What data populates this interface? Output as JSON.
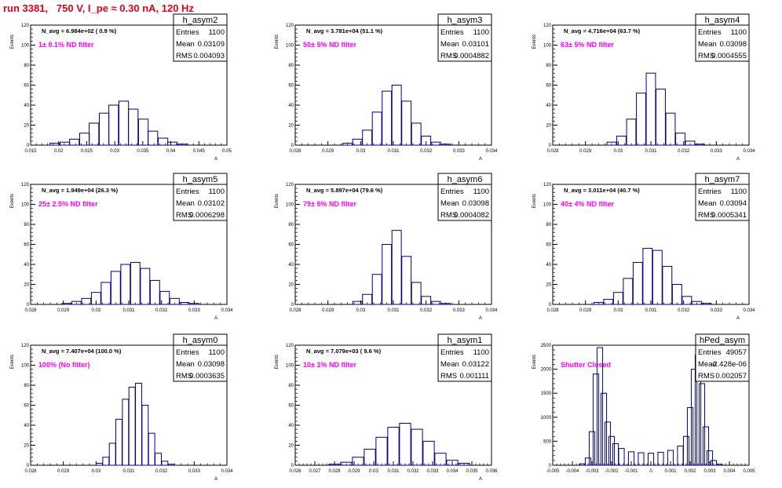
{
  "page_title": "run 3381,   750 V, I_pe ≈ 0.30 nA, 120 Hz",
  "colors": {
    "hist": "#000080",
    "title": "#e2001a",
    "annotation": "#ff00ff",
    "frame": "#000000"
  },
  "chart_data": [
    {
      "type": "bar",
      "hist_name": "h_asym2",
      "ylabel": "Events",
      "xlabel": "A",
      "navg": "N_avg = 6.984e+02 ( 0.9 %)",
      "filter": "1± 0.1% ND filter",
      "stats": {
        "entries": "1100",
        "mean": "0.03109",
        "rms": "0.004093"
      },
      "xlim": [
        0.015,
        0.05
      ],
      "ylim": [
        0,
        120
      ],
      "xticks": [
        0.015,
        0.02,
        0.025,
        0.03,
        0.035,
        0.04,
        0.045,
        0.05
      ],
      "xtick_labels": [
        "0.015",
        "0.02",
        "0.025",
        "0.03",
        "0.035",
        "0.04",
        "0.045",
        "0.05"
      ],
      "yticks": [
        0,
        20,
        40,
        60,
        80,
        100,
        120
      ],
      "ytick_labels": [
        "0",
        "20",
        "40",
        "60",
        "80",
        "100",
        "120"
      ],
      "x": [
        0.0193,
        0.0211,
        0.0228,
        0.0246,
        0.0263,
        0.0281,
        0.0298,
        0.0316,
        0.0333,
        0.0351,
        0.0368,
        0.0386,
        0.0403,
        0.0421
      ],
      "values": [
        2,
        3,
        6,
        12,
        22,
        32,
        40,
        44,
        36,
        26,
        14,
        7,
        3,
        1
      ]
    },
    {
      "type": "bar",
      "hist_name": "h_asym3",
      "ylabel": "Events",
      "xlabel": "A",
      "navg": "N_avg = 3.781e+04 (51.1 %)",
      "filter": "50± 5% ND filter",
      "stats": {
        "entries": "1100",
        "mean": "0.03101",
        "rms": "0.0004882"
      },
      "xlim": [
        0.028,
        0.034
      ],
      "ylim": [
        0,
        120
      ],
      "xticks": [
        0.028,
        0.029,
        0.03,
        0.031,
        0.032,
        0.033,
        0.034
      ],
      "xtick_labels": [
        "0.028",
        "0.029",
        "0.03",
        "0.031",
        "0.032",
        "0.033",
        "0.034"
      ],
      "yticks": [
        0,
        20,
        40,
        60,
        80,
        100,
        120
      ],
      "ytick_labels": [
        "0",
        "20",
        "40",
        "60",
        "80",
        "100",
        "120"
      ],
      "x": [
        0.0296,
        0.0299,
        0.0302,
        0.0305,
        0.0308,
        0.0311,
        0.0314,
        0.0317,
        0.032,
        0.0323,
        0.0326
      ],
      "values": [
        2,
        6,
        15,
        33,
        54,
        60,
        44,
        22,
        9,
        3,
        1
      ]
    },
    {
      "type": "bar",
      "hist_name": "h_asym4",
      "ylabel": "Events",
      "xlabel": "A",
      "navg": "N_avg = 4.716e+04 (63.7 %)",
      "filter": "63± 5% ND filter",
      "stats": {
        "entries": "1100",
        "mean": "0.03098",
        "rms": "0.0004555"
      },
      "xlim": [
        0.028,
        0.034
      ],
      "ylim": [
        0,
        120
      ],
      "xticks": [
        0.028,
        0.029,
        0.03,
        0.031,
        0.032,
        0.033,
        0.034
      ],
      "xtick_labels": [
        "0.028",
        "0.029",
        "0.03",
        "0.031",
        "0.032",
        "0.033",
        "0.034"
      ],
      "yticks": [
        0,
        20,
        40,
        60,
        80,
        100,
        120
      ],
      "ytick_labels": [
        "0",
        "20",
        "40",
        "60",
        "80",
        "100",
        "120"
      ],
      "x": [
        0.0298,
        0.0301,
        0.0304,
        0.0307,
        0.031,
        0.0313,
        0.0316,
        0.0319,
        0.0322,
        0.0325
      ],
      "values": [
        3,
        9,
        26,
        52,
        72,
        56,
        32,
        12,
        4,
        1
      ]
    },
    {
      "type": "bar",
      "hist_name": "h_asym5",
      "ylabel": "Events",
      "xlabel": "A",
      "navg": "N_avg = 1.949e+04 (26.3 %)",
      "filter": "25± 2.5% ND filter",
      "stats": {
        "entries": "1100",
        "mean": "0.03102",
        "rms": "0.0006298"
      },
      "xlim": [
        0.028,
        0.034
      ],
      "ylim": [
        0,
        120
      ],
      "xticks": [
        0.028,
        0.029,
        0.03,
        0.031,
        0.032,
        0.033,
        0.034
      ],
      "xtick_labels": [
        "0.028",
        "0.029",
        "0.03",
        "0.031",
        "0.032",
        "0.033",
        "0.034"
      ],
      "yticks": [
        0,
        20,
        40,
        60,
        80,
        100,
        120
      ],
      "ytick_labels": [
        "0",
        "20",
        "40",
        "60",
        "80",
        "100",
        "120"
      ],
      "x": [
        0.0291,
        0.0294,
        0.0297,
        0.03,
        0.0303,
        0.0306,
        0.0309,
        0.0312,
        0.0315,
        0.0318,
        0.0321,
        0.0324,
        0.0327,
        0.033
      ],
      "values": [
        1,
        3,
        6,
        12,
        22,
        33,
        40,
        42,
        36,
        24,
        13,
        6,
        2,
        1
      ]
    },
    {
      "type": "bar",
      "hist_name": "h_asym6",
      "ylabel": "Events",
      "xlabel": "A",
      "navg": "N_avg = 5.897e+04 (79.6 %)",
      "filter": "79± 5% ND filter",
      "stats": {
        "entries": "1100",
        "mean": "0.03098",
        "rms": "0.0004082"
      },
      "xlim": [
        0.028,
        0.034
      ],
      "ylim": [
        0,
        120
      ],
      "xticks": [
        0.028,
        0.029,
        0.03,
        0.031,
        0.032,
        0.033,
        0.034
      ],
      "xtick_labels": [
        "0.028",
        "0.029",
        "0.03",
        "0.031",
        "0.032",
        "0.033",
        "0.034"
      ],
      "yticks": [
        0,
        20,
        40,
        60,
        80,
        100,
        120
      ],
      "ytick_labels": [
        "0",
        "20",
        "40",
        "60",
        "80",
        "100",
        "120"
      ],
      "x": [
        0.0299,
        0.0302,
        0.0305,
        0.0308,
        0.0311,
        0.0314,
        0.0317,
        0.032,
        0.0323,
        0.0326
      ],
      "values": [
        3,
        10,
        30,
        60,
        74,
        48,
        22,
        8,
        3,
        1
      ]
    },
    {
      "type": "bar",
      "hist_name": "h_asym7",
      "ylabel": "Events",
      "xlabel": "A",
      "navg": "N_avg = 3.011e+04 (40.7 %)",
      "filter": "40± 4% ND filter",
      "stats": {
        "entries": "1100",
        "mean": "0.03094",
        "rms": "0.0005341"
      },
      "xlim": [
        0.028,
        0.034
      ],
      "ylim": [
        0,
        120
      ],
      "xticks": [
        0.028,
        0.029,
        0.03,
        0.031,
        0.032,
        0.033,
        0.034
      ],
      "xtick_labels": [
        "0.028",
        "0.029",
        "0.03",
        "0.031",
        "0.032",
        "0.033",
        "0.034"
      ],
      "yticks": [
        0,
        20,
        40,
        60,
        80,
        100,
        120
      ],
      "ytick_labels": [
        "0",
        "20",
        "40",
        "60",
        "80",
        "100",
        "120"
      ],
      "x": [
        0.0294,
        0.0297,
        0.03,
        0.0303,
        0.0306,
        0.0309,
        0.0312,
        0.0315,
        0.0318,
        0.0321,
        0.0324,
        0.0327
      ],
      "values": [
        2,
        5,
        12,
        26,
        42,
        56,
        54,
        38,
        20,
        8,
        3,
        1
      ]
    },
    {
      "type": "bar",
      "hist_name": "h_asym0",
      "ylabel": "Events",
      "xlabel": "A",
      "navg": "N_avg = 7.407e+04 (100.0 %)",
      "filter": "100% (No filter)",
      "stats": {
        "entries": "1100",
        "mean": "0.03098",
        "rms": "0.0003635"
      },
      "xlim": [
        0.028,
        0.034
      ],
      "ylim": [
        0,
        120
      ],
      "xticks": [
        0.028,
        0.029,
        0.03,
        0.031,
        0.032,
        0.033,
        0.034
      ],
      "xtick_labels": [
        "0.028",
        "0.029",
        "0.03",
        "0.031",
        "0.032",
        "0.033",
        "0.034"
      ],
      "yticks": [
        0,
        20,
        40,
        60,
        80,
        100,
        120
      ],
      "ytick_labels": [
        "0",
        "20",
        "40",
        "60",
        "80",
        "100",
        "120"
      ],
      "x": [
        0.0301,
        0.0303,
        0.0305,
        0.0307,
        0.0309,
        0.0311,
        0.0313,
        0.0315,
        0.0317,
        0.0319,
        0.0321,
        0.0323
      ],
      "values": [
        2,
        8,
        22,
        46,
        66,
        78,
        82,
        60,
        32,
        12,
        4,
        1
      ]
    },
    {
      "type": "bar",
      "hist_name": "h_asym1",
      "ylabel": "Events",
      "xlabel": "A",
      "navg": "N_avg = 7.079e+03 ( 9.6 %)",
      "filter": "10± 1% ND filter",
      "stats": {
        "entries": "1100",
        "mean": "0.03122",
        "rms": "0.001111"
      },
      "xlim": [
        0.026,
        0.036
      ],
      "ylim": [
        0,
        120
      ],
      "xticks": [
        0.026,
        0.027,
        0.028,
        0.029,
        0.03,
        0.031,
        0.032,
        0.033,
        0.034,
        0.035,
        0.036
      ],
      "xtick_labels": [
        "0.026",
        "0.027",
        "0.028",
        "0.029",
        "0.03",
        "0.031",
        "0.032",
        "0.033",
        "0.034",
        "0.035",
        "0.036"
      ],
      "yticks": [
        0,
        20,
        40,
        60,
        80,
        100,
        120
      ],
      "ytick_labels": [
        "0",
        "20",
        "40",
        "60",
        "80",
        "100",
        "120"
      ],
      "x": [
        0.028,
        0.0286,
        0.0292,
        0.0298,
        0.0304,
        0.031,
        0.0316,
        0.0322,
        0.0328,
        0.0334,
        0.034,
        0.0346
      ],
      "values": [
        1,
        3,
        8,
        16,
        28,
        38,
        42,
        36,
        24,
        12,
        5,
        2
      ]
    },
    {
      "type": "bar",
      "hist_name": "hPed_asym",
      "ylabel": "Events",
      "xlabel": "",
      "navg": "",
      "filter": "Shutter Closed",
      "stats": {
        "entries": "49057",
        "mean": "-2.428e-06",
        "rms": "0.002057"
      },
      "xlim": [
        -0.005,
        0.005
      ],
      "ylim": [
        0,
        2500
      ],
      "xticks": [
        -0.005,
        -0.004,
        -0.003,
        -0.002,
        -0.001,
        0,
        0.001,
        0.002,
        0.003,
        0.004,
        0.005
      ],
      "xtick_labels": [
        "-0.005",
        "-0.004",
        "-0.003",
        "-0.002",
        "-0.001",
        "0",
        "0.001",
        "0.002",
        "0.003",
        "0.004",
        "0.005"
      ],
      "yticks": [
        0,
        500,
        1000,
        1500,
        2000,
        2500
      ],
      "ytick_labels": [
        "0",
        "500",
        "1000",
        "1500",
        "2000",
        "2500"
      ],
      "x": [
        -0.0035,
        -0.0032,
        -0.003,
        -0.0028,
        -0.0026,
        -0.0024,
        -0.0022,
        -0.002,
        -0.0018,
        -0.0015,
        -0.001,
        -0.0005,
        0.0,
        0.0005,
        0.001,
        0.0015,
        0.0018,
        0.002,
        0.0022,
        0.0024,
        0.0026,
        0.0028,
        0.003,
        0.0032,
        0.0035
      ],
      "values": [
        30,
        150,
        700,
        1900,
        2450,
        1500,
        900,
        600,
        450,
        350,
        280,
        260,
        250,
        270,
        310,
        400,
        600,
        1200,
        2000,
        2300,
        1700,
        800,
        300,
        100,
        20
      ]
    }
  ]
}
